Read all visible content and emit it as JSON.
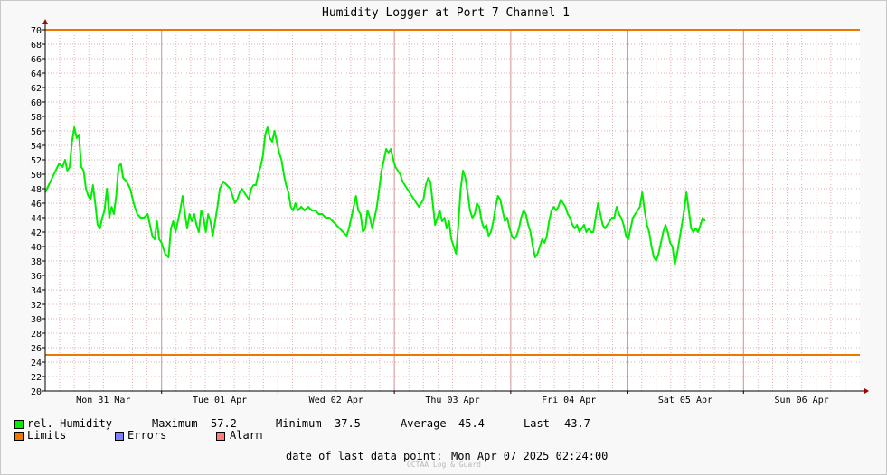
{
  "chart_data": {
    "type": "line",
    "title": "Humidity Logger at Port 7 Channel 1",
    "ylim": [
      20,
      70
    ],
    "y_ticks": [
      20,
      22,
      24,
      26,
      28,
      30,
      32,
      34,
      36,
      38,
      40,
      42,
      44,
      46,
      48,
      50,
      52,
      54,
      56,
      58,
      60,
      62,
      64,
      66,
      68,
      70
    ],
    "x_range_days": [
      0,
      7
    ],
    "x_labels": [
      {
        "day": 0.5,
        "label": "Mon 31 Mar"
      },
      {
        "day": 1.5,
        "label": "Tue 01 Apr"
      },
      {
        "day": 2.5,
        "label": "Wed 02 Apr"
      },
      {
        "day": 3.5,
        "label": "Thu 03 Apr"
      },
      {
        "day": 4.5,
        "label": "Fri 04 Apr"
      },
      {
        "day": 5.5,
        "label": "Sat 05 Apr"
      },
      {
        "day": 6.5,
        "label": "Sun 06 Apr"
      }
    ],
    "grid": true,
    "limits": {
      "upper": 70,
      "lower": 25
    },
    "colors": {
      "humidity": "#00ee00",
      "limits": "#ee7700",
      "errors": "#7f7fff",
      "alarm": "#ff7f7f",
      "grid_minor": "#e0b0b0",
      "grid_major": "#d09090"
    },
    "series": [
      {
        "name": "rel. Humidity",
        "points": [
          [
            0.0,
            47.5
          ],
          [
            0.03,
            48.5
          ],
          [
            0.06,
            49.5
          ],
          [
            0.09,
            50.5
          ],
          [
            0.12,
            51.5
          ],
          [
            0.15,
            51.0
          ],
          [
            0.17,
            52.0
          ],
          [
            0.19,
            50.5
          ],
          [
            0.21,
            51.0
          ],
          [
            0.23,
            54.5
          ],
          [
            0.25,
            56.5
          ],
          [
            0.27,
            55.0
          ],
          [
            0.29,
            55.5
          ],
          [
            0.31,
            51.0
          ],
          [
            0.33,
            50.5
          ],
          [
            0.35,
            48.0
          ],
          [
            0.37,
            47.0
          ],
          [
            0.39,
            46.5
          ],
          [
            0.41,
            48.5
          ],
          [
            0.43,
            46.0
          ],
          [
            0.45,
            43.0
          ],
          [
            0.47,
            42.5
          ],
          [
            0.49,
            44.0
          ],
          [
            0.51,
            45.0
          ],
          [
            0.53,
            48.0
          ],
          [
            0.55,
            44.0
          ],
          [
            0.57,
            45.5
          ],
          [
            0.59,
            44.5
          ],
          [
            0.61,
            47.0
          ],
          [
            0.63,
            51.0
          ],
          [
            0.65,
            51.5
          ],
          [
            0.67,
            49.5
          ],
          [
            0.7,
            49.0
          ],
          [
            0.73,
            48.0
          ],
          [
            0.76,
            46.0
          ],
          [
            0.79,
            44.5
          ],
          [
            0.82,
            44.0
          ],
          [
            0.85,
            44.0
          ],
          [
            0.88,
            44.5
          ],
          [
            0.9,
            43.0
          ],
          [
            0.92,
            41.5
          ],
          [
            0.94,
            41.0
          ],
          [
            0.96,
            43.5
          ],
          [
            0.98,
            41.0
          ],
          [
            1.0,
            40.5
          ],
          [
            1.03,
            39.0
          ],
          [
            1.06,
            38.5
          ],
          [
            1.08,
            42.5
          ],
          [
            1.1,
            43.5
          ],
          [
            1.12,
            42.0
          ],
          [
            1.14,
            43.5
          ],
          [
            1.16,
            45.0
          ],
          [
            1.18,
            47.0
          ],
          [
            1.2,
            44.5
          ],
          [
            1.22,
            42.5
          ],
          [
            1.24,
            44.5
          ],
          [
            1.26,
            43.5
          ],
          [
            1.28,
            44.5
          ],
          [
            1.3,
            43.0
          ],
          [
            1.32,
            42.0
          ],
          [
            1.34,
            45.0
          ],
          [
            1.36,
            44.0
          ],
          [
            1.38,
            42.0
          ],
          [
            1.4,
            44.5
          ],
          [
            1.42,
            43.5
          ],
          [
            1.44,
            41.5
          ],
          [
            1.46,
            43.5
          ],
          [
            1.48,
            45.5
          ],
          [
            1.5,
            48.0
          ],
          [
            1.53,
            49.0
          ],
          [
            1.56,
            48.5
          ],
          [
            1.59,
            48.0
          ],
          [
            1.61,
            47.0
          ],
          [
            1.63,
            46.0
          ],
          [
            1.65,
            46.5
          ],
          [
            1.67,
            47.5
          ],
          [
            1.69,
            48.0
          ],
          [
            1.71,
            47.5
          ],
          [
            1.73,
            47.0
          ],
          [
            1.75,
            46.5
          ],
          [
            1.77,
            48.0
          ],
          [
            1.79,
            48.5
          ],
          [
            1.81,
            48.5
          ],
          [
            1.83,
            50.0
          ],
          [
            1.85,
            51.0
          ],
          [
            1.87,
            52.5
          ],
          [
            1.89,
            55.5
          ],
          [
            1.91,
            56.5
          ],
          [
            1.93,
            55.0
          ],
          [
            1.95,
            54.5
          ],
          [
            1.97,
            56.0
          ],
          [
            1.99,
            54.5
          ],
          [
            2.01,
            53.0
          ],
          [
            2.03,
            52.0
          ],
          [
            2.05,
            50.0
          ],
          [
            2.07,
            48.5
          ],
          [
            2.09,
            47.5
          ],
          [
            2.11,
            45.5
          ],
          [
            2.13,
            45.0
          ],
          [
            2.15,
            46.0
          ],
          [
            2.17,
            45.0
          ],
          [
            2.2,
            45.5
          ],
          [
            2.23,
            45.0
          ],
          [
            2.26,
            45.5
          ],
          [
            2.29,
            45.0
          ],
          [
            2.32,
            45.0
          ],
          [
            2.35,
            44.5
          ],
          [
            2.38,
            44.5
          ],
          [
            2.41,
            44.0
          ],
          [
            2.44,
            44.0
          ],
          [
            2.47,
            43.5
          ],
          [
            2.5,
            43.0
          ],
          [
            2.53,
            42.5
          ],
          [
            2.56,
            42.0
          ],
          [
            2.59,
            41.5
          ],
          [
            2.61,
            42.5
          ],
          [
            2.63,
            44.0
          ],
          [
            2.65,
            45.5
          ],
          [
            2.67,
            47.0
          ],
          [
            2.69,
            45.0
          ],
          [
            2.71,
            44.5
          ],
          [
            2.73,
            42.0
          ],
          [
            2.75,
            42.5
          ],
          [
            2.77,
            45.0
          ],
          [
            2.79,
            44.0
          ],
          [
            2.81,
            42.5
          ],
          [
            2.83,
            44.0
          ],
          [
            2.85,
            45.5
          ],
          [
            2.87,
            48.0
          ],
          [
            2.89,
            50.5
          ],
          [
            2.91,
            52.0
          ],
          [
            2.93,
            53.5
          ],
          [
            2.95,
            53.0
          ],
          [
            2.97,
            53.5
          ],
          [
            2.99,
            52.0
          ],
          [
            3.01,
            51.0
          ],
          [
            3.03,
            50.5
          ],
          [
            3.05,
            50.0
          ],
          [
            3.07,
            49.0
          ],
          [
            3.09,
            48.5
          ],
          [
            3.11,
            48.0
          ],
          [
            3.13,
            47.5
          ],
          [
            3.15,
            47.0
          ],
          [
            3.17,
            46.5
          ],
          [
            3.19,
            46.0
          ],
          [
            3.21,
            45.5
          ],
          [
            3.23,
            46.0
          ],
          [
            3.25,
            46.5
          ],
          [
            3.27,
            48.5
          ],
          [
            3.29,
            49.5
          ],
          [
            3.31,
            49.0
          ],
          [
            3.33,
            46.0
          ],
          [
            3.35,
            43.0
          ],
          [
            3.37,
            44.0
          ],
          [
            3.39,
            45.0
          ],
          [
            3.41,
            43.5
          ],
          [
            3.43,
            44.0
          ],
          [
            3.45,
            42.5
          ],
          [
            3.47,
            43.5
          ],
          [
            3.49,
            41.0
          ],
          [
            3.51,
            40.0
          ],
          [
            3.53,
            39.0
          ],
          [
            3.55,
            43.0
          ],
          [
            3.57,
            48.0
          ],
          [
            3.59,
            50.5
          ],
          [
            3.61,
            49.5
          ],
          [
            3.63,
            47.5
          ],
          [
            3.65,
            45.0
          ],
          [
            3.67,
            44.0
          ],
          [
            3.69,
            44.5
          ],
          [
            3.71,
            46.0
          ],
          [
            3.73,
            45.5
          ],
          [
            3.75,
            43.5
          ],
          [
            3.77,
            42.5
          ],
          [
            3.79,
            43.0
          ],
          [
            3.81,
            41.5
          ],
          [
            3.83,
            42.0
          ],
          [
            3.85,
            43.5
          ],
          [
            3.87,
            45.5
          ],
          [
            3.89,
            47.0
          ],
          [
            3.91,
            46.5
          ],
          [
            3.93,
            45.0
          ],
          [
            3.95,
            43.5
          ],
          [
            3.97,
            44.0
          ],
          [
            3.99,
            42.5
          ],
          [
            4.01,
            41.5
          ],
          [
            4.03,
            41.0
          ],
          [
            4.05,
            41.5
          ],
          [
            4.07,
            42.5
          ],
          [
            4.09,
            44.0
          ],
          [
            4.11,
            45.0
          ],
          [
            4.13,
            44.5
          ],
          [
            4.15,
            43.0
          ],
          [
            4.17,
            42.0
          ],
          [
            4.19,
            40.0
          ],
          [
            4.21,
            38.5
          ],
          [
            4.23,
            39.0
          ],
          [
            4.25,
            40.0
          ],
          [
            4.27,
            41.0
          ],
          [
            4.29,
            40.5
          ],
          [
            4.31,
            41.5
          ],
          [
            4.33,
            43.5
          ],
          [
            4.35,
            45.0
          ],
          [
            4.37,
            45.5
          ],
          [
            4.39,
            45.0
          ],
          [
            4.41,
            45.5
          ],
          [
            4.43,
            46.5
          ],
          [
            4.45,
            46.0
          ],
          [
            4.47,
            45.5
          ],
          [
            4.49,
            44.5
          ],
          [
            4.51,
            44.0
          ],
          [
            4.53,
            43.0
          ],
          [
            4.55,
            42.5
          ],
          [
            4.57,
            43.0
          ],
          [
            4.59,
            42.0
          ],
          [
            4.61,
            42.5
          ],
          [
            4.63,
            43.0
          ],
          [
            4.65,
            42.0
          ],
          [
            4.67,
            42.5
          ],
          [
            4.69,
            42.0
          ],
          [
            4.71,
            42.0
          ],
          [
            4.73,
            44.0
          ],
          [
            4.75,
            46.0
          ],
          [
            4.77,
            44.5
          ],
          [
            4.79,
            43.0
          ],
          [
            4.81,
            42.5
          ],
          [
            4.83,
            43.0
          ],
          [
            4.85,
            43.5
          ],
          [
            4.87,
            44.0
          ],
          [
            4.89,
            44.0
          ],
          [
            4.91,
            45.5
          ],
          [
            4.93,
            44.5
          ],
          [
            4.95,
            44.0
          ],
          [
            4.97,
            43.0
          ],
          [
            4.99,
            41.5
          ],
          [
            5.01,
            41.0
          ],
          [
            5.03,
            42.5
          ],
          [
            5.05,
            44.0
          ],
          [
            5.07,
            44.5
          ],
          [
            5.09,
            45.0
          ],
          [
            5.11,
            45.5
          ],
          [
            5.13,
            47.5
          ],
          [
            5.15,
            45.0
          ],
          [
            5.17,
            43.0
          ],
          [
            5.19,
            42.0
          ],
          [
            5.21,
            40.0
          ],
          [
            5.23,
            38.5
          ],
          [
            5.25,
            38.0
          ],
          [
            5.27,
            39.0
          ],
          [
            5.29,
            40.5
          ],
          [
            5.31,
            42.0
          ],
          [
            5.33,
            43.0
          ],
          [
            5.35,
            42.0
          ],
          [
            5.37,
            40.5
          ],
          [
            5.39,
            40.0
          ],
          [
            5.41,
            37.5
          ],
          [
            5.43,
            39.0
          ],
          [
            5.45,
            41.0
          ],
          [
            5.47,
            43.0
          ],
          [
            5.49,
            45.0
          ],
          [
            5.51,
            47.5
          ],
          [
            5.53,
            45.0
          ],
          [
            5.55,
            42.5
          ],
          [
            5.57,
            42.0
          ],
          [
            5.59,
            42.5
          ],
          [
            5.61,
            42.0
          ],
          [
            5.63,
            43.0
          ],
          [
            5.65,
            44.0
          ],
          [
            5.67,
            43.5
          ]
        ]
      }
    ],
    "legend": {
      "humidity_label": "rel. Humidity",
      "limits_label": "Limits",
      "errors_label": "Errors",
      "alarm_label": "Alarm"
    },
    "stats": {
      "max_label": "Maximum",
      "max_value": "57.2",
      "min_label": "Minimum",
      "min_value": "37.5",
      "avg_label": "Average",
      "avg_value": "45.4",
      "last_label": "Last",
      "last_value": "43.7"
    },
    "last_point_label": "date of last data point:",
    "last_point_value": "Mon Apr 07 2025 02:24:00",
    "watermark": "OCTAA Log & Guard"
  }
}
